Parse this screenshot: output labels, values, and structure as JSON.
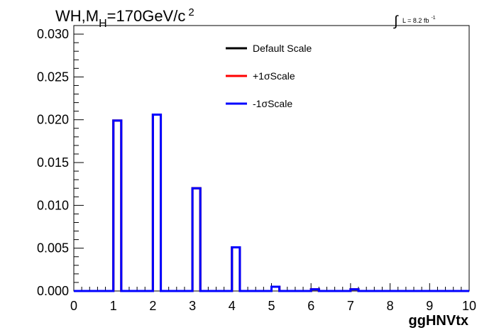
{
  "chart_data": {
    "type": "histogram",
    "title": {
      "main_a": "WH,M",
      "sub": "H",
      "main_b": "=170GeV/c",
      "sup": "2"
    },
    "luminosity": {
      "symbol": "∫",
      "text": "L = 8.2 fb",
      "sup": "-1"
    },
    "xlabel": "ggHNVtx",
    "ylabel": "",
    "xlim": [
      0,
      10
    ],
    "ylim": [
      0,
      0.031
    ],
    "x_ticks": [
      0,
      1,
      2,
      3,
      4,
      5,
      6,
      7,
      8,
      9,
      10
    ],
    "x_tick_labels": [
      "0",
      "1",
      "2",
      "3",
      "4",
      "5",
      "6",
      "7",
      "8",
      "9",
      "10"
    ],
    "y_ticks": [
      0.0,
      0.005,
      0.01,
      0.015,
      0.02,
      0.025,
      0.03
    ],
    "y_tick_labels": [
      "0.000",
      "0.005",
      "0.010",
      "0.015",
      "0.020",
      "0.025",
      "0.030"
    ],
    "bin_edges": [
      0,
      0.2,
      0.4,
      0.6,
      0.8,
      1.0,
      1.2,
      1.4,
      1.6,
      1.8,
      2.0,
      2.2,
      2.4,
      2.6,
      2.8,
      3.0,
      3.2,
      3.4,
      3.6,
      3.8,
      4.0,
      4.2,
      4.4,
      4.6,
      4.8,
      5.0,
      5.2,
      5.4,
      5.6,
      5.8,
      6.0,
      6.2,
      6.4,
      6.6,
      6.8,
      7.0,
      7.2,
      7.4,
      7.6,
      7.8,
      8.0,
      8.2,
      8.4,
      8.6,
      8.8,
      9.0,
      9.2,
      9.4,
      9.6,
      9.8,
      10.0
    ],
    "series": [
      {
        "name": "Default Scale",
        "color": "#000000",
        "values": [
          0,
          0,
          0,
          0,
          0,
          0.0199,
          0,
          0,
          0,
          0,
          0.0206,
          0,
          0,
          0,
          0,
          0.012,
          0,
          0,
          0,
          0,
          0.0051,
          0,
          0,
          0,
          0,
          0.0005,
          0,
          0,
          0,
          0,
          0.0002,
          0,
          0,
          0,
          0,
          0.0002,
          0,
          0,
          0,
          0,
          0,
          0,
          0,
          0,
          0,
          0,
          0,
          0,
          0,
          0
        ]
      },
      {
        "name": "+1σScale",
        "color": "#ff0000",
        "values": [
          0,
          0,
          0,
          0,
          0,
          0.0199,
          0,
          0,
          0,
          0,
          0.0206,
          0,
          0,
          0,
          0,
          0.012,
          0,
          0,
          0,
          0,
          0.0051,
          0,
          0,
          0,
          0,
          0.0005,
          0,
          0,
          0,
          0,
          0.0002,
          0,
          0,
          0,
          0,
          0.0002,
          0,
          0,
          0,
          0,
          0,
          0,
          0,
          0,
          0,
          0,
          0,
          0,
          0,
          0
        ]
      },
      {
        "name": "-1σScale",
        "color": "#0000ff",
        "values": [
          0,
          0,
          0,
          0,
          0,
          0.0199,
          0,
          0,
          0,
          0,
          0.0206,
          0,
          0,
          0,
          0,
          0.012,
          0,
          0,
          0,
          0,
          0.0051,
          0,
          0,
          0,
          0,
          0.0005,
          0,
          0,
          0,
          0,
          0.0002,
          0,
          0,
          0,
          0,
          0.0002,
          0,
          0,
          0,
          0,
          0,
          0,
          0,
          0,
          0,
          0,
          0,
          0,
          0,
          0
        ]
      }
    ],
    "legend": {
      "position": "top-center",
      "entries": [
        "Default Scale",
        "+1σScale",
        "-1σScale"
      ]
    },
    "grid": false
  }
}
